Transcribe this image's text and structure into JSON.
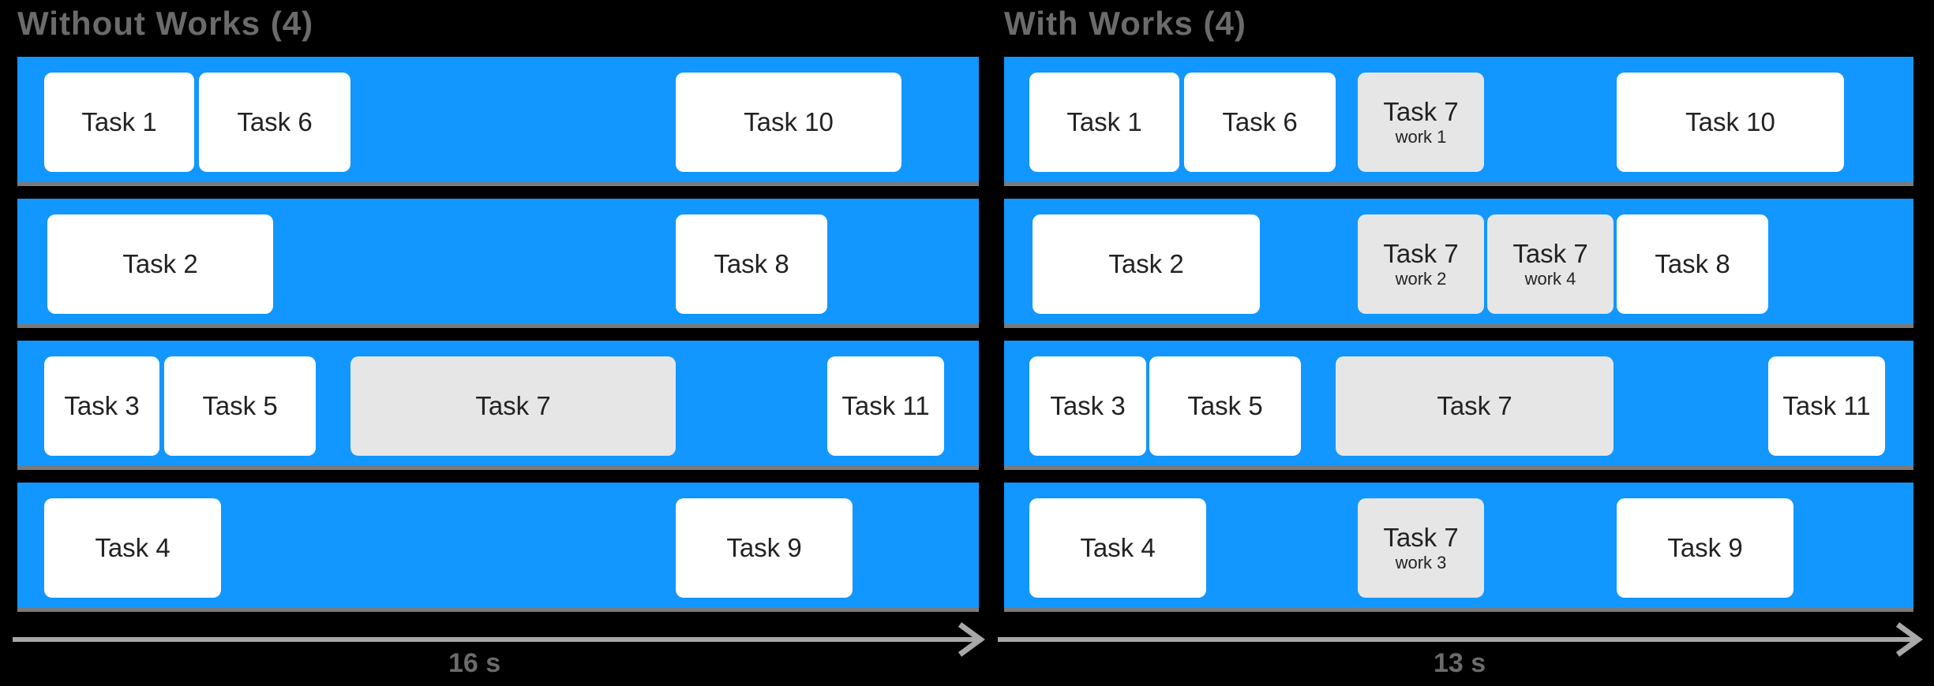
{
  "left": {
    "title": "Without Works (4)",
    "axis_label": "16 s",
    "lanes": [
      [
        {
          "name": "Task 1"
        },
        {
          "name": "Task 6"
        },
        {
          "name": "Task 10"
        }
      ],
      [
        {
          "name": "Task 2"
        },
        {
          "name": "Task 8"
        }
      ],
      [
        {
          "name": "Task 3"
        },
        {
          "name": "Task 5"
        },
        {
          "name": "Task 7"
        },
        {
          "name": "Task 11"
        }
      ],
      [
        {
          "name": "Task 4"
        },
        {
          "name": "Task 9"
        }
      ]
    ]
  },
  "right": {
    "title": "With Works (4)",
    "axis_label": "13 s",
    "lanes": [
      [
        {
          "name": "Task 1"
        },
        {
          "name": "Task 6"
        },
        {
          "name": "Task 7",
          "sub": "work 1"
        },
        {
          "name": "Task 10"
        }
      ],
      [
        {
          "name": "Task 2"
        },
        {
          "name": "Task 7",
          "sub": "work 2"
        },
        {
          "name": "Task 7",
          "sub": "work 4"
        },
        {
          "name": "Task 8"
        }
      ],
      [
        {
          "name": "Task 3"
        },
        {
          "name": "Task 5"
        },
        {
          "name": "Task 7"
        },
        {
          "name": "Task 11"
        }
      ],
      [
        {
          "name": "Task 4"
        },
        {
          "name": "Task 7",
          "sub": "work 3"
        },
        {
          "name": "Task 9"
        }
      ]
    ]
  },
  "colors": {
    "lane": "#1197FF",
    "task": "#FFFFFF",
    "task_highlight": "#E6E6E6"
  }
}
